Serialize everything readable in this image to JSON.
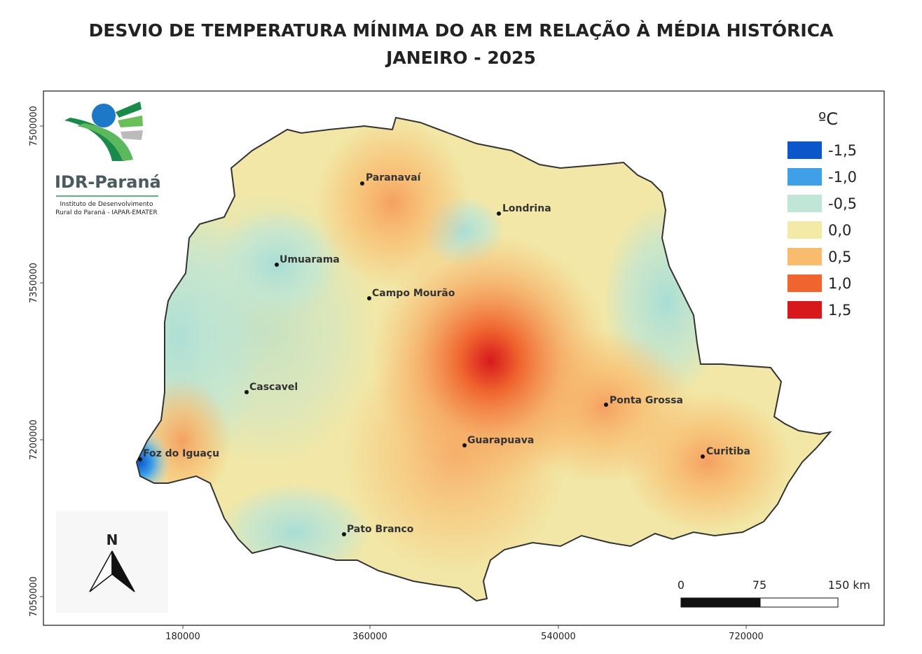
{
  "header": {
    "title_lines": [
      "DESVIO DE TEMPERATURA MÍNIMA DO AR EM RELAÇÃO À MÉDIA HISTÓRICA",
      "JANEIRO - 2025"
    ]
  },
  "logo": {
    "name": "IDR-Paraná",
    "subtitle_lines": [
      "Instituto de Desenvolvimento",
      "Rural do Paraná - IAPAR-EMATER"
    ]
  },
  "map": {
    "cities": [
      "Paranavaí",
      "Londrina",
      "Umuarama",
      "Campo Mourão",
      "Cascavel",
      "Ponta Grossa",
      "Foz do Iguaçu",
      "Guarapuava",
      "Curitiba",
      "Pato Branco"
    ]
  },
  "legend": {
    "unit": "ºC",
    "items": [
      {
        "label": "-1,5",
        "color": "#0b57c9"
      },
      {
        "label": "-1,0",
        "color": "#3fa0e8"
      },
      {
        "label": "-0,5",
        "color": "#bfe6d6"
      },
      {
        "label": "0,0",
        "color": "#f4eaa8"
      },
      {
        "label": "0,5",
        "color": "#f9bb6e"
      },
      {
        "label": "1,0",
        "color": "#f0652f"
      },
      {
        "label": "1,5",
        "color": "#d7191c"
      }
    ]
  },
  "axes": {
    "x_ticks": [
      "180000",
      "360000",
      "540000",
      "720000"
    ],
    "y_ticks": [
      "7500000",
      "7350000",
      "7200000",
      "7050000"
    ]
  },
  "north_arrow": "N",
  "scale_bar": [
    "0",
    "75",
    "150 km"
  ]
}
